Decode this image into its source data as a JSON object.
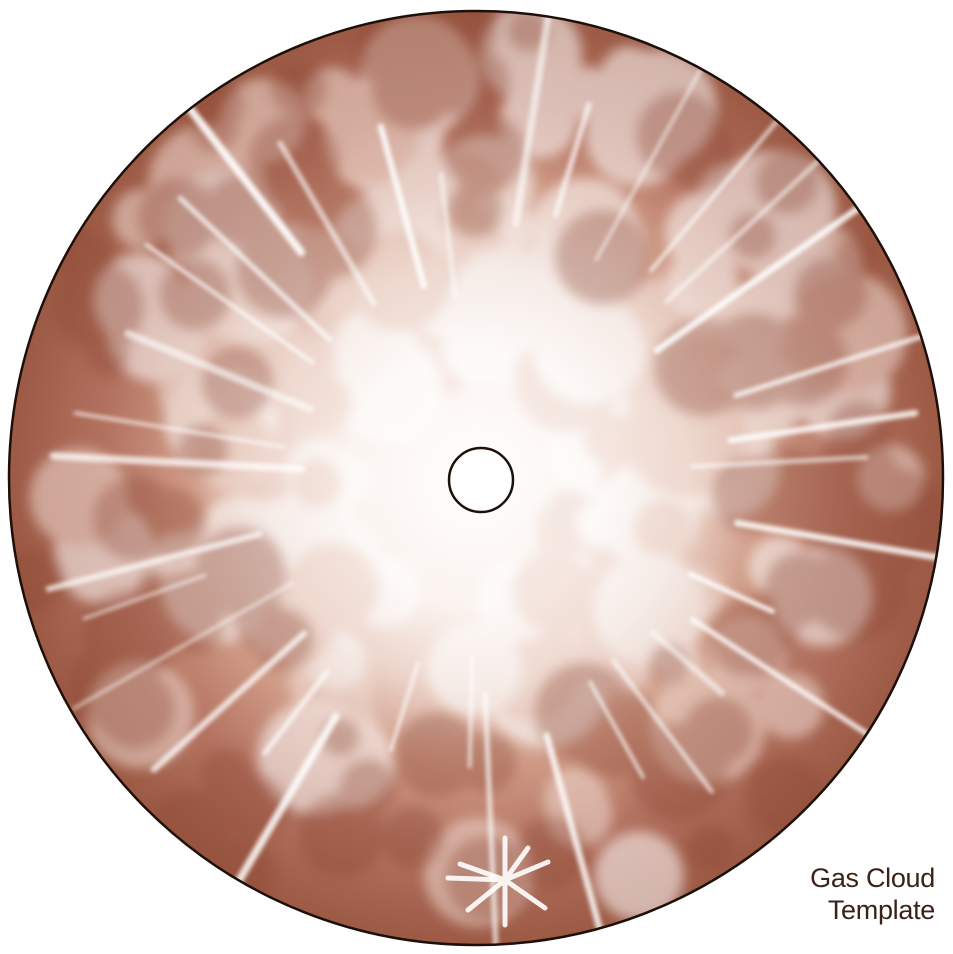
{
  "caption": {
    "line1": "Gas Cloud",
    "line2": "Template"
  },
  "colors": {
    "sepia_dark": "#8e4a36",
    "sepia_mid": "#b87a64",
    "sepia_light": "#e7c9bd",
    "highlight": "#ffffff",
    "outline": "#1d0f0a",
    "caption_text": "#3a2218"
  },
  "artwork": {
    "subject": "circular gas cloud template",
    "elements": [
      "outer-disc",
      "puffy-cloud-texture",
      "radiating-streaks",
      "center-hole",
      "starburst-mark"
    ]
  }
}
